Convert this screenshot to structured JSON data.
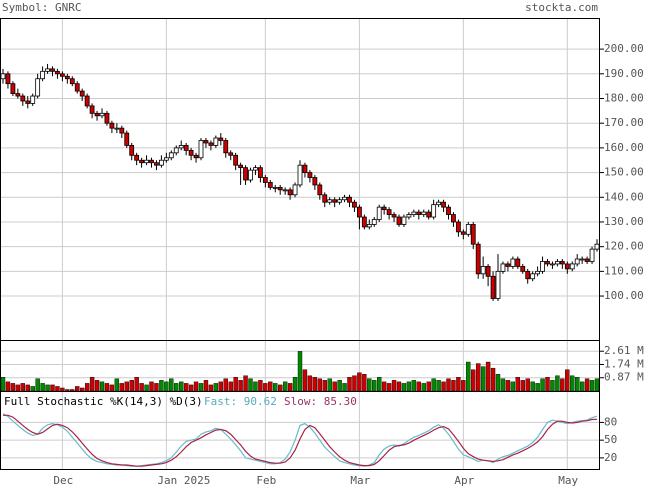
{
  "header": {
    "symbol": "Symbol: GNRC",
    "site": "stockta.com"
  },
  "chart_data": [
    {
      "type": "candlestick",
      "up_color": "#ffffff",
      "down_color": "#cc0000",
      "grid": true,
      "categories": [
        null,
        null,
        null,
        null,
        null,
        null,
        null,
        null,
        null,
        null,
        null,
        null,
        "Dec",
        null,
        null,
        null,
        null,
        null,
        null,
        null,
        null,
        null,
        null,
        null,
        null,
        null,
        null,
        null,
        null,
        null,
        null,
        null,
        null,
        "Jan 2025",
        null,
        null,
        null,
        null,
        null,
        null,
        null,
        null,
        null,
        null,
        null,
        null,
        null,
        null,
        null,
        null,
        null,
        null,
        null,
        "Feb",
        null,
        null,
        null,
        null,
        null,
        null,
        null,
        null,
        null,
        null,
        null,
        null,
        null,
        null,
        null,
        null,
        null,
        null,
        "Mar",
        null,
        null,
        null,
        null,
        null,
        null,
        null,
        null,
        null,
        null,
        null,
        null,
        null,
        null,
        null,
        null,
        null,
        null,
        null,
        null,
        "Apr",
        null,
        null,
        null,
        null,
        null,
        null,
        null,
        null,
        null,
        null,
        null,
        null,
        null,
        null,
        null,
        null,
        null,
        null,
        null,
        null,
        "May",
        null,
        null,
        null,
        null,
        null,
        null
      ],
      "open": [
        188,
        190,
        186,
        182,
        181,
        179,
        178,
        181,
        188,
        191,
        192,
        191,
        190,
        189,
        188,
        186,
        183,
        181,
        177,
        174,
        173,
        174,
        170,
        168,
        168,
        166,
        161,
        157,
        155,
        154,
        155,
        154,
        153,
        155,
        156,
        158,
        160,
        161,
        159,
        157,
        156,
        163,
        162,
        161,
        164,
        163,
        158,
        157,
        153,
        152,
        147,
        151,
        152,
        148,
        146,
        144,
        144,
        143,
        143,
        141,
        145,
        153,
        150,
        148,
        145,
        141,
        138,
        139,
        138,
        139,
        140,
        138,
        136,
        132,
        128,
        129,
        131,
        136,
        135,
        133,
        132,
        129,
        132,
        133,
        134,
        133,
        134,
        132,
        137,
        138,
        136,
        133,
        130,
        126,
        125,
        129,
        121,
        109,
        112,
        108,
        99,
        110,
        113,
        112,
        115,
        112,
        110,
        107,
        109,
        110,
        114,
        113,
        113,
        114,
        113,
        111,
        113,
        115,
        115,
        114,
        119
      ],
      "high": [
        192,
        191,
        187,
        184,
        182,
        181,
        182,
        190,
        193,
        194,
        193,
        192,
        191,
        190,
        189,
        187,
        184,
        182,
        178,
        175,
        176,
        175,
        171,
        170,
        169,
        167,
        162,
        158,
        156,
        157,
        156,
        155,
        157,
        158,
        159,
        161,
        163,
        162,
        160,
        158,
        164,
        164,
        163,
        165,
        166,
        164,
        159,
        158,
        154,
        153,
        152,
        153,
        153,
        149,
        147,
        145,
        145,
        144,
        144,
        146,
        155,
        154,
        151,
        149,
        146,
        142,
        140,
        140,
        140,
        141,
        141,
        139,
        137,
        133,
        131,
        132,
        137,
        137,
        136,
        134,
        133,
        133,
        134,
        135,
        135,
        135,
        135,
        139,
        139,
        139,
        137,
        134,
        131,
        127,
        130,
        130,
        122,
        116,
        113,
        110,
        117,
        114,
        114,
        116,
        116,
        113,
        111,
        110,
        112,
        116,
        115,
        114,
        115,
        115,
        114,
        114,
        117,
        116,
        116,
        120,
        123
      ],
      "low": [
        186,
        184,
        181,
        180,
        177,
        176,
        177,
        180,
        187,
        190,
        189,
        188,
        187,
        186,
        185,
        182,
        179,
        176,
        172,
        171,
        172,
        169,
        166,
        166,
        164,
        160,
        155,
        153,
        152,
        153,
        152,
        151,
        152,
        154,
        155,
        157,
        159,
        157,
        155,
        154,
        155,
        160,
        159,
        160,
        161,
        156,
        155,
        151,
        145,
        145,
        146,
        149,
        146,
        144,
        143,
        142,
        141,
        141,
        139,
        140,
        144,
        148,
        146,
        143,
        139,
        136,
        137,
        136,
        137,
        138,
        136,
        134,
        127,
        127,
        127,
        128,
        130,
        133,
        131,
        130,
        128,
        128,
        131,
        132,
        131,
        132,
        131,
        131,
        136,
        134,
        131,
        128,
        124,
        123,
        124,
        119,
        107,
        107,
        104,
        98,
        98,
        109,
        110,
        111,
        111,
        109,
        105,
        106,
        108,
        109,
        112,
        111,
        112,
        111,
        109,
        110,
        112,
        113,
        113,
        113,
        118
      ],
      "close": [
        190,
        186,
        182,
        181,
        179,
        178,
        181,
        188,
        191,
        192,
        191,
        190,
        189,
        188,
        186,
        183,
        181,
        177,
        174,
        173,
        174,
        170,
        168,
        168,
        166,
        161,
        157,
        155,
        154,
        155,
        154,
        153,
        155,
        156,
        158,
        160,
        161,
        159,
        157,
        156,
        163,
        162,
        161,
        164,
        163,
        158,
        157,
        153,
        152,
        147,
        151,
        152,
        148,
        146,
        144,
        144,
        143,
        143,
        141,
        145,
        153,
        150,
        148,
        145,
        141,
        138,
        139,
        138,
        139,
        140,
        138,
        136,
        132,
        128,
        129,
        131,
        136,
        135,
        133,
        132,
        129,
        132,
        133,
        134,
        133,
        134,
        132,
        137,
        138,
        136,
        133,
        130,
        126,
        125,
        129,
        121,
        109,
        112,
        108,
        99,
        110,
        113,
        112,
        115,
        112,
        110,
        107,
        109,
        110,
        114,
        113,
        113,
        114,
        113,
        111,
        113,
        115,
        115,
        114,
        119,
        121
      ],
      "ylim": [
        82.2,
        212.6
      ],
      "yticks": [
        {
          "value": 100,
          "label": "100.00"
        },
        {
          "value": 110,
          "label": "110.00"
        },
        {
          "value": 120,
          "label": "120.00"
        },
        {
          "value": 130,
          "label": "130.00"
        },
        {
          "value": 140,
          "label": "140.00"
        },
        {
          "value": 150,
          "label": "150.00"
        },
        {
          "value": 160,
          "label": "160.00"
        },
        {
          "value": 170,
          "label": "170.00"
        },
        {
          "value": 180,
          "label": "180.00"
        },
        {
          "value": 190,
          "label": "190.00"
        },
        {
          "value": 200,
          "label": "200.00"
        }
      ]
    },
    {
      "type": "bar",
      "up_color": "#008800",
      "down_color": "#cc0000",
      "values": [
        0.9,
        0.6,
        0.5,
        0.4,
        0.5,
        0.4,
        0.3,
        0.8,
        0.5,
        0.4,
        0.4,
        0.3,
        0.2,
        0.1,
        0.1,
        0.3,
        0.2,
        0.5,
        0.9,
        0.7,
        0.6,
        0.5,
        0.4,
        0.8,
        0.5,
        0.6,
        0.7,
        0.9,
        0.5,
        0.4,
        0.6,
        0.5,
        0.7,
        0.6,
        0.8,
        0.5,
        0.6,
        0.5,
        0.4,
        0.6,
        0.5,
        0.7,
        0.4,
        0.5,
        0.6,
        0.8,
        0.6,
        0.9,
        0.7,
        1.0,
        0.8,
        0.6,
        0.7,
        0.5,
        0.6,
        0.5,
        0.4,
        0.6,
        0.5,
        0.9,
        2.6,
        1.4,
        1.0,
        0.9,
        0.8,
        0.7,
        0.8,
        0.6,
        0.7,
        0.5,
        0.9,
        1.0,
        1.2,
        1.1,
        0.8,
        0.7,
        0.9,
        0.6,
        0.5,
        0.7,
        0.6,
        0.5,
        0.6,
        0.7,
        0.6,
        0.5,
        0.6,
        0.8,
        0.7,
        0.6,
        0.8,
        0.7,
        0.9,
        0.7,
        1.9,
        1.4,
        1.8,
        1.6,
        1.9,
        1.5,
        1.1,
        0.8,
        0.7,
        0.6,
        0.9,
        0.7,
        0.8,
        0.6,
        0.5,
        0.8,
        0.9,
        0.7,
        1.0,
        0.8,
        1.4,
        1.0,
        0.9,
        0.6,
        0.8,
        0.7,
        0.8
      ],
      "ylim": [
        0,
        3.28
      ],
      "yticks": [
        {
          "value": 2.61,
          "label": "2.61 M"
        },
        {
          "value": 1.74,
          "label": "1.74 M"
        },
        {
          "value": 0.87,
          "label": "0.87 M"
        }
      ]
    },
    {
      "type": "line",
      "title": "Full Stochastic %K(14,3) %D(3)",
      "fast_label": "Fast: 90.62",
      "slow_label": "Slow: 85.30",
      "series": [
        {
          "name": "Fast",
          "color": "#66bbcc",
          "values": [
            95,
            90,
            82,
            75,
            68,
            62,
            58,
            60,
            70,
            76,
            78,
            76,
            72,
            65,
            55,
            45,
            35,
            25,
            18,
            14,
            12,
            10,
            9,
            8,
            8,
            7,
            6,
            6,
            7,
            8,
            9,
            10,
            12,
            15,
            20,
            30,
            40,
            48,
            50,
            52,
            60,
            64,
            66,
            70,
            68,
            60,
            52,
            42,
            32,
            20,
            18,
            16,
            14,
            12,
            10,
            10,
            12,
            18,
            30,
            50,
            75,
            78,
            72,
            62,
            50,
            38,
            30,
            22,
            15,
            12,
            10,
            8,
            7,
            6,
            8,
            12,
            25,
            35,
            40,
            42,
            40,
            44,
            50,
            55,
            58,
            62,
            66,
            72,
            76,
            70,
            60,
            48,
            35,
            25,
            22,
            18,
            14,
            16,
            15,
            12,
            18,
            22,
            24,
            28,
            32,
            36,
            40,
            46,
            55,
            68,
            80,
            84,
            82,
            80,
            78,
            80,
            82,
            83,
            84,
            88,
            90.62
          ]
        },
        {
          "name": "Slow",
          "color": "#aa2244",
          "values": [
            92,
            92,
            89,
            82,
            75,
            68,
            63,
            60,
            63,
            69,
            75,
            77,
            75,
            71,
            64,
            55,
            45,
            35,
            26,
            19,
            15,
            12,
            10,
            9,
            8,
            8,
            7,
            6,
            6,
            7,
            8,
            9,
            10,
            12,
            16,
            22,
            30,
            39,
            46,
            50,
            54,
            59,
            63,
            67,
            68,
            66,
            60,
            51,
            42,
            31,
            23,
            18,
            16,
            14,
            12,
            11,
            11,
            13,
            20,
            33,
            52,
            68,
            75,
            71,
            61,
            50,
            39,
            30,
            22,
            16,
            12,
            10,
            8,
            7,
            7,
            9,
            15,
            24,
            33,
            39,
            41,
            42,
            45,
            50,
            54,
            58,
            62,
            67,
            71,
            73,
            69,
            59,
            48,
            36,
            27,
            22,
            18,
            16,
            15,
            14,
            15,
            17,
            21,
            25,
            28,
            32,
            36,
            41,
            47,
            56,
            68,
            77,
            82,
            82,
            80,
            79,
            80,
            82,
            83,
            85,
            85.3
          ]
        }
      ],
      "ylim": [
        0,
        131.5
      ],
      "yticks": [
        20,
        50,
        80
      ]
    }
  ]
}
